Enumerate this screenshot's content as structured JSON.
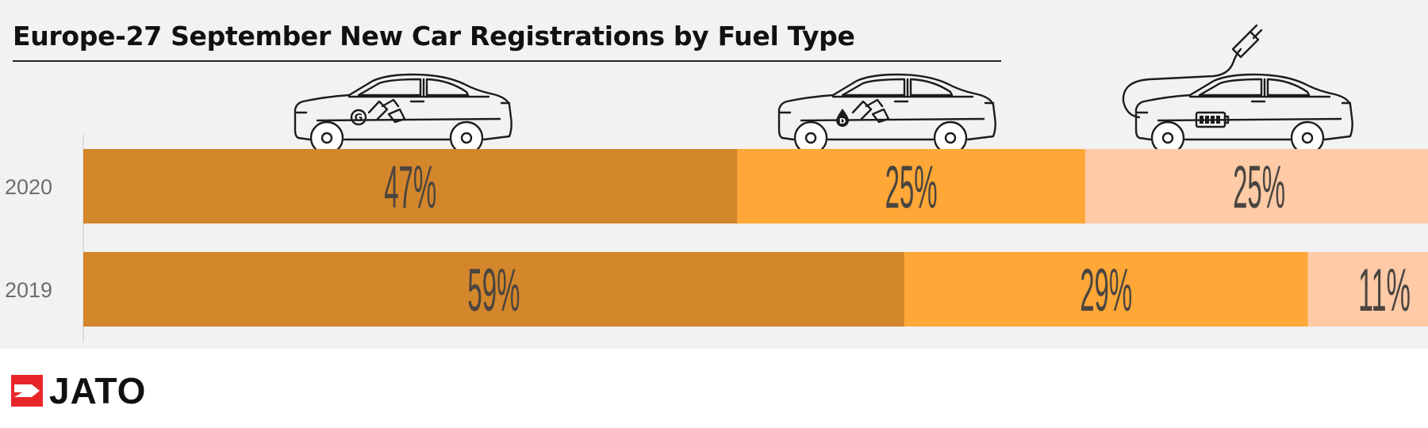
{
  "title": "Europe-27 September New Car Registrations by Fuel Type",
  "logo": {
    "text": "JATO",
    "colors": {
      "mark": "#e8262a"
    }
  },
  "chart_data": {
    "type": "bar",
    "orientation": "horizontal",
    "stacked": true,
    "categories": [
      "2020",
      "2019"
    ],
    "series": [
      {
        "values": [
          47,
          59
        ],
        "labels": [
          "47%",
          "59%"
        ],
        "color": "#d4862a"
      },
      {
        "values": [
          25,
          29
        ],
        "labels": [
          "25%",
          "29%"
        ],
        "color": "#ffa737"
      },
      {
        "values": [
          25,
          11
        ],
        "labels": [
          "25%",
          "11%"
        ],
        "color": "#ffcaa6"
      }
    ],
    "series_icons": [
      "petrol-car-icon",
      "diesel-car-icon",
      "electric-car-icon"
    ],
    "xlim": [
      0,
      100
    ],
    "grid": false,
    "legend": "none"
  }
}
